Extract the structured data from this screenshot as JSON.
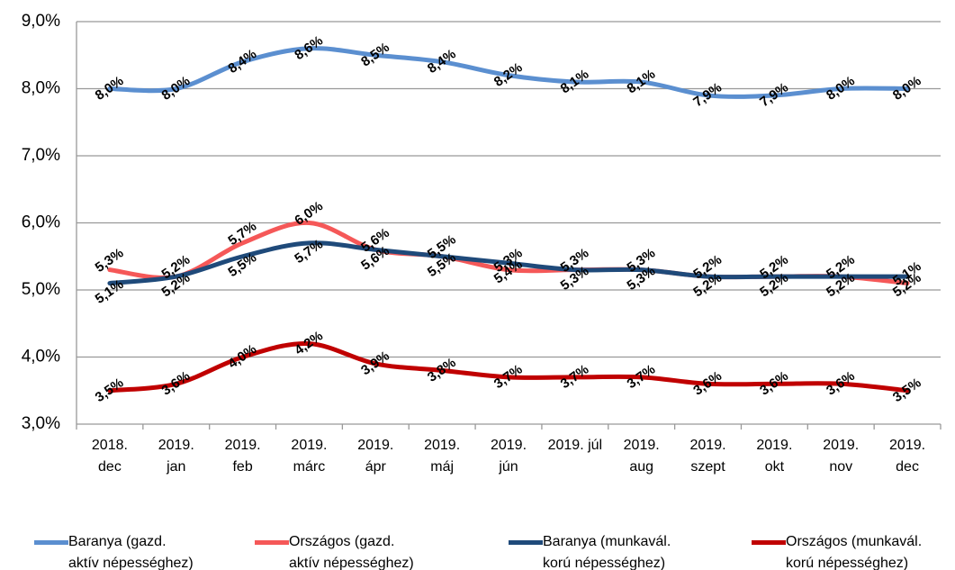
{
  "chart_data": {
    "type": "line",
    "categories": [
      "2018.\ndec",
      "2019.\njan",
      "2019.\nfeb",
      "2019.\nmárc",
      "2019.\nápr",
      "2019.\nmáj",
      "2019.\njún",
      "2019. júl",
      "2019.\naug",
      "2019.\nszept",
      "2019.\nokt",
      "2019.\nnov",
      "2019.\ndec"
    ],
    "series": [
      {
        "name": "Baranya (gazd.\naktív népességhez)",
        "color": "#5B8FD0",
        "values": [
          8.0,
          8.0,
          8.4,
          8.6,
          8.5,
          8.4,
          8.2,
          8.1,
          8.1,
          7.9,
          7.9,
          8.0,
          8.0
        ],
        "value_labels": [
          "8,0%",
          "8,0%",
          "8,4%",
          "8,6%",
          "8,5%",
          "8,4%",
          "8,2%",
          "8,1%",
          "8,1%",
          "7,9%",
          "7,9%",
          "8,0%",
          "8,0%"
        ]
      },
      {
        "name": "Országos (gazd.\naktív népességhez)",
        "color": "#F55858",
        "values": [
          5.3,
          5.2,
          5.7,
          6.0,
          5.6,
          5.5,
          5.3,
          5.3,
          5.3,
          5.2,
          5.2,
          5.2,
          5.1
        ],
        "value_labels": [
          "5,3%",
          "5,2%",
          "5,7%",
          "6,0%",
          "5,6%",
          "5,5%",
          "5,3%",
          "5,3%",
          "5,3%",
          "5,2%",
          "5,2%",
          "5,2%",
          "5,1%"
        ]
      },
      {
        "name": "Baranya (munkavál.\nkorú népességhez)",
        "color": "#1F4A7A",
        "values": [
          5.1,
          5.2,
          5.5,
          5.7,
          5.6,
          5.5,
          5.4,
          5.3,
          5.3,
          5.2,
          5.2,
          5.2,
          5.2
        ],
        "value_labels": [
          "5,1%",
          "5,2%",
          "5,5%",
          "5,7%",
          "5,6%",
          "5,5%",
          "5,4%",
          "5,3%",
          "5,3%",
          "5,2%",
          "5,2%",
          "5,2%",
          "5,2%"
        ]
      },
      {
        "name": "Országos (munkavál.\nkorú népességhez)",
        "color": "#C00000",
        "values": [
          3.5,
          3.6,
          4.0,
          4.2,
          3.9,
          3.8,
          3.7,
          3.7,
          3.7,
          3.6,
          3.6,
          3.6,
          3.5
        ],
        "value_labels": [
          "3,5%",
          "3,6%",
          "4,0%",
          "4,2%",
          "3,9%",
          "3,8%",
          "3,7%",
          "3,7%",
          "3,7%",
          "3,6%",
          "3,6%",
          "3,6%",
          "3,5%"
        ]
      }
    ],
    "ylim": [
      3,
      9
    ],
    "yticks": [
      {
        "value": 3,
        "label": "3,0%"
      },
      {
        "value": 4,
        "label": "4,0%"
      },
      {
        "value": 5,
        "label": "5,0%"
      },
      {
        "value": 6,
        "label": "6,0%"
      },
      {
        "value": 7,
        "label": "7,0%"
      },
      {
        "value": 8,
        "label": "8,0%"
      },
      {
        "value": 9,
        "label": "9,0%"
      }
    ],
    "grid": true
  }
}
